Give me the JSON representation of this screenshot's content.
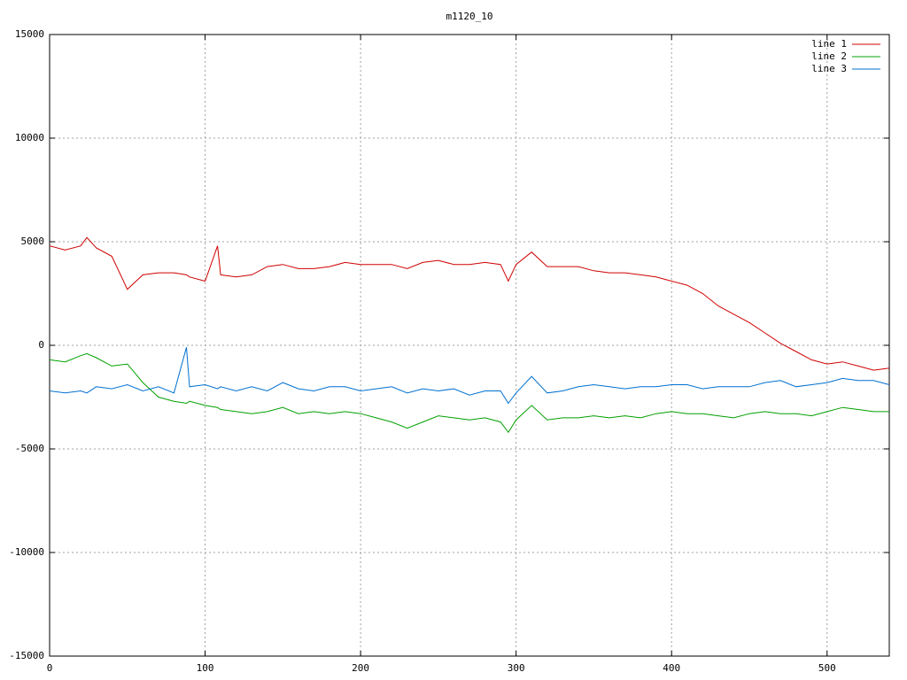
{
  "chart_data": {
    "type": "line",
    "title": "m1120_10",
    "x": [
      0,
      10,
      20,
      24,
      30,
      40,
      50,
      60,
      70,
      80,
      88,
      90,
      100,
      108,
      110,
      120,
      130,
      140,
      150,
      160,
      170,
      180,
      190,
      200,
      210,
      220,
      230,
      240,
      250,
      260,
      270,
      280,
      290,
      295,
      300,
      310,
      320,
      330,
      340,
      350,
      360,
      370,
      380,
      390,
      400,
      410,
      420,
      430,
      440,
      450,
      460,
      470,
      480,
      490,
      500,
      510,
      520,
      530,
      540
    ],
    "series": [
      {
        "name": "line 1",
        "color": "#d00000",
        "values": [
          4800,
          4600,
          4800,
          5200,
          4700,
          4300,
          2700,
          3400,
          3500,
          3500,
          3400,
          3300,
          3100,
          4800,
          3400,
          3300,
          3400,
          3800,
          3900,
          3700,
          3700,
          3800,
          4000,
          3900,
          3900,
          3900,
          3700,
          4000,
          4100,
          3900,
          3900,
          4000,
          3900,
          3100,
          3900,
          4500,
          3800,
          3800,
          3800,
          3600,
          3500,
          3500,
          3400,
          3300,
          3100,
          2900,
          2500,
          1900,
          1500,
          1100,
          600,
          100,
          -300,
          -700,
          -900,
          -800,
          -1000,
          -1200,
          -1100
        ]
      },
      {
        "name": "line 2",
        "color": "#00a000",
        "values": [
          -700,
          -800,
          -500,
          -400,
          -600,
          -1000,
          -900,
          -1800,
          -2500,
          -2700,
          -2800,
          -2700,
          -2900,
          -3000,
          -3100,
          -3200,
          -3300,
          -3200,
          -3000,
          -3300,
          -3200,
          -3300,
          -3200,
          -3300,
          -3500,
          -3700,
          -4000,
          -3700,
          -3400,
          -3500,
          -3600,
          -3500,
          -3700,
          -4200,
          -3600,
          -2900,
          -3600,
          -3500,
          -3500,
          -3400,
          -3500,
          -3400,
          -3500,
          -3300,
          -3200,
          -3300,
          -3300,
          -3400,
          -3500,
          -3300,
          -3200,
          -3300,
          -3300,
          -3400,
          -3200,
          -3000,
          -3100,
          -3200,
          -3200
        ]
      },
      {
        "name": "line 3",
        "color": "#0070d0",
        "values": [
          -2200,
          -2300,
          -2200,
          -2300,
          -2000,
          -2100,
          -1900,
          -2200,
          -2000,
          -2300,
          -100,
          -2000,
          -1900,
          -2100,
          -2000,
          -2200,
          -2000,
          -2200,
          -1800,
          -2100,
          -2200,
          -2000,
          -2000,
          -2200,
          -2100,
          -2000,
          -2300,
          -2100,
          -2200,
          -2100,
          -2400,
          -2200,
          -2200,
          -2800,
          -2300,
          -1500,
          -2300,
          -2200,
          -2000,
          -1900,
          -2000,
          -2100,
          -2000,
          -2000,
          -1900,
          -1900,
          -2100,
          -2000,
          -2000,
          -2000,
          -1800,
          -1700,
          -2000,
          -1900,
          -1800,
          -1600,
          -1700,
          -1700,
          -1900
        ]
      }
    ],
    "xlim": [
      0,
      540
    ],
    "xticks": [
      0,
      100,
      200,
      300,
      400,
      500
    ],
    "ylim": [
      -15000,
      15000
    ],
    "yticks": [
      -15000,
      -10000,
      -5000,
      0,
      5000,
      10000,
      15000
    ],
    "grid": true,
    "legend": "top-right"
  }
}
